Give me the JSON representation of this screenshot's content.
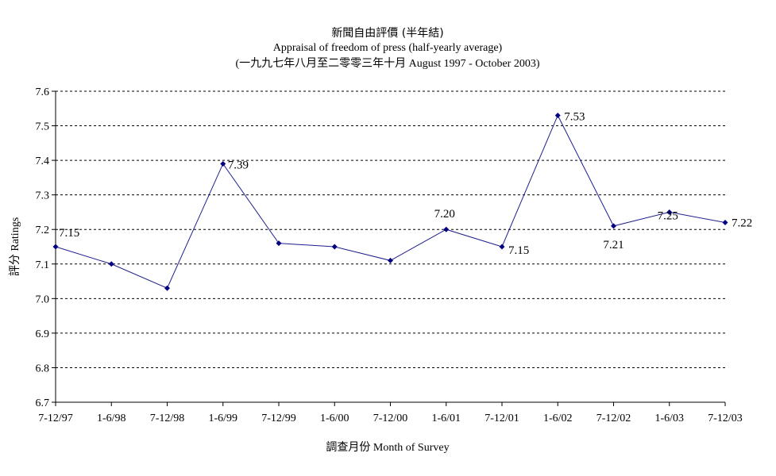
{
  "chart_data": {
    "type": "line",
    "title": "新聞自由評價 (半年結)",
    "subtitle_en": "Appraisal of freedom of press (half-yearly average)",
    "period": "(一九九七年八月至二零零三年十月 August 1997 - October 2003)",
    "xlabel": "調查月份 Month of Survey",
    "ylabel": "評分 Ratings",
    "categories": [
      "7-12/97",
      "1-6/98",
      "7-12/98",
      "1-6/99",
      "7-12/99",
      "1-6/00",
      "7-12/00",
      "1-6/01",
      "7-12/01",
      "1-6/02",
      "7-12/02",
      "1-6/03",
      "7-12/03"
    ],
    "values": [
      7.15,
      7.1,
      7.03,
      7.39,
      7.16,
      7.15,
      7.11,
      7.2,
      7.15,
      7.53,
      7.21,
      7.25,
      7.22
    ],
    "data_labels": [
      "7.15",
      "",
      "",
      "7.39",
      "",
      "",
      "",
      "7.20",
      "7.15",
      "7.53",
      "7.21",
      "7.25",
      "7.22"
    ],
    "ylim": [
      6.7,
      7.6
    ],
    "yticks": [
      "6.7",
      "6.8",
      "6.9",
      "7.0",
      "7.1",
      "7.2",
      "7.3",
      "7.4",
      "7.5",
      "7.6"
    ],
    "grid": "horizontal dashed",
    "line_color": "#1f1f8f",
    "marker_color": "#000080"
  }
}
